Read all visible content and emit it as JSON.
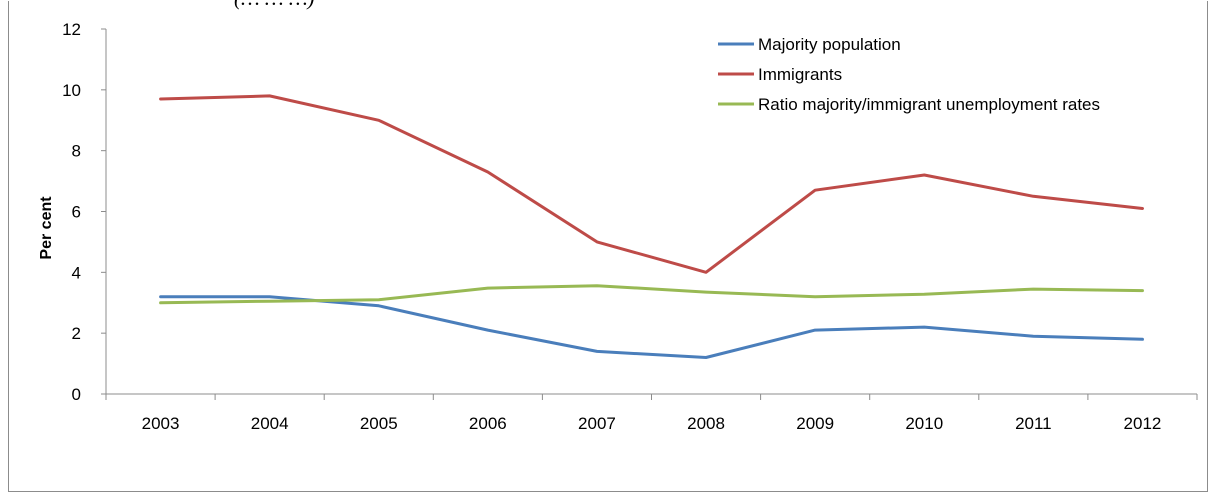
{
  "top_fragment": "(… … …)",
  "chart_data": {
    "type": "line",
    "title": "",
    "xlabel": "",
    "ylabel": "Per cent",
    "ylim": [
      0,
      12
    ],
    "yticks": [
      0,
      2,
      4,
      6,
      8,
      10,
      12
    ],
    "grid": false,
    "legend_position": "top-right",
    "categories": [
      "2003",
      "2004",
      "2005",
      "2006",
      "2007",
      "2008",
      "2009",
      "2010",
      "2011",
      "2012"
    ],
    "series": [
      {
        "name": "Majority population",
        "color": "#4a7ebb",
        "values": [
          3.2,
          3.2,
          2.9,
          2.1,
          1.4,
          1.2,
          2.1,
          2.2,
          1.9,
          1.8
        ]
      },
      {
        "name": "Immigrants",
        "color": "#be4b48",
        "values": [
          9.7,
          9.8,
          9.0,
          7.3,
          5.0,
          4.0,
          6.7,
          7.2,
          6.5,
          6.1
        ]
      },
      {
        "name": "Ratio majority/immigrant unemployment rates",
        "color": "#98b954",
        "values": [
          3.0,
          3.05,
          3.1,
          3.48,
          3.56,
          3.35,
          3.2,
          3.28,
          3.45,
          3.4
        ]
      }
    ]
  }
}
